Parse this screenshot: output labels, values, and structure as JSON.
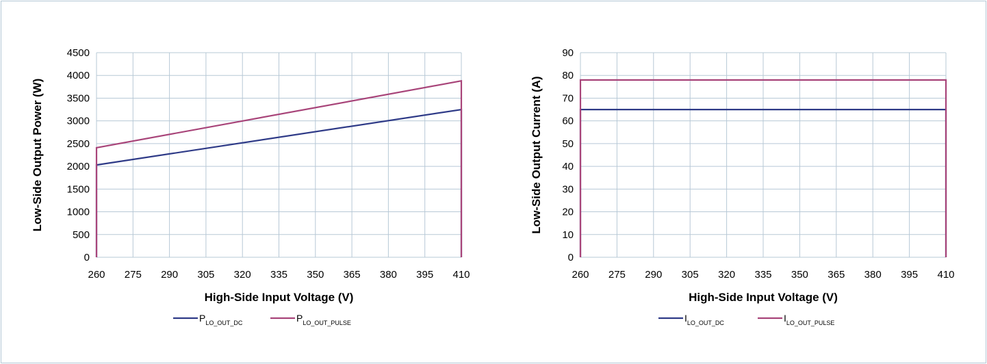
{
  "chart_data": [
    {
      "type": "line",
      "title": "",
      "xlabel": "High-Side Input Voltage (V)",
      "ylabel": "Low-Side Output Power (W)",
      "x_ticks": [
        260,
        275,
        290,
        305,
        320,
        335,
        350,
        365,
        380,
        395,
        410
      ],
      "y_ticks": [
        0,
        500,
        1000,
        1500,
        2000,
        2500,
        3000,
        3500,
        4000,
        4500
      ],
      "xlim": [
        260,
        410
      ],
      "ylim": [
        0,
        4500
      ],
      "grid": true,
      "legend_position": "bottom",
      "series": [
        {
          "name": "P",
          "name_subscript": "LO_OUT_DC",
          "color": "#2e3a87",
          "points": [
            [
              260,
              0
            ],
            [
              260,
              2030
            ],
            [
              410,
              3250
            ],
            [
              410,
              0
            ]
          ]
        },
        {
          "name": "P",
          "name_subscript": "LO_OUT_PULSE",
          "color": "#a84479",
          "points": [
            [
              260,
              0
            ],
            [
              260,
              2410
            ],
            [
              410,
              3880
            ],
            [
              410,
              0
            ]
          ]
        }
      ]
    },
    {
      "type": "line",
      "title": "",
      "xlabel": "High-Side Input Voltage (V)",
      "ylabel": "Low-Side Output Current (A)",
      "x_ticks": [
        260,
        275,
        290,
        305,
        320,
        335,
        350,
        365,
        380,
        395,
        410
      ],
      "y_ticks": [
        0,
        10,
        20,
        30,
        40,
        50,
        60,
        70,
        80,
        90
      ],
      "xlim": [
        260,
        410
      ],
      "ylim": [
        0,
        90
      ],
      "grid": true,
      "legend_position": "bottom",
      "series": [
        {
          "name": "I",
          "name_subscript": "LO_OUT_DC",
          "color": "#2e3a87",
          "points": [
            [
              260,
              0
            ],
            [
              260,
              65
            ],
            [
              410,
              65
            ],
            [
              410,
              0
            ]
          ]
        },
        {
          "name": "I",
          "name_subscript": "LO_OUT_PULSE",
          "color": "#a84479",
          "points": [
            [
              260,
              0
            ],
            [
              260,
              78
            ],
            [
              410,
              78
            ],
            [
              410,
              0
            ]
          ]
        }
      ]
    }
  ]
}
